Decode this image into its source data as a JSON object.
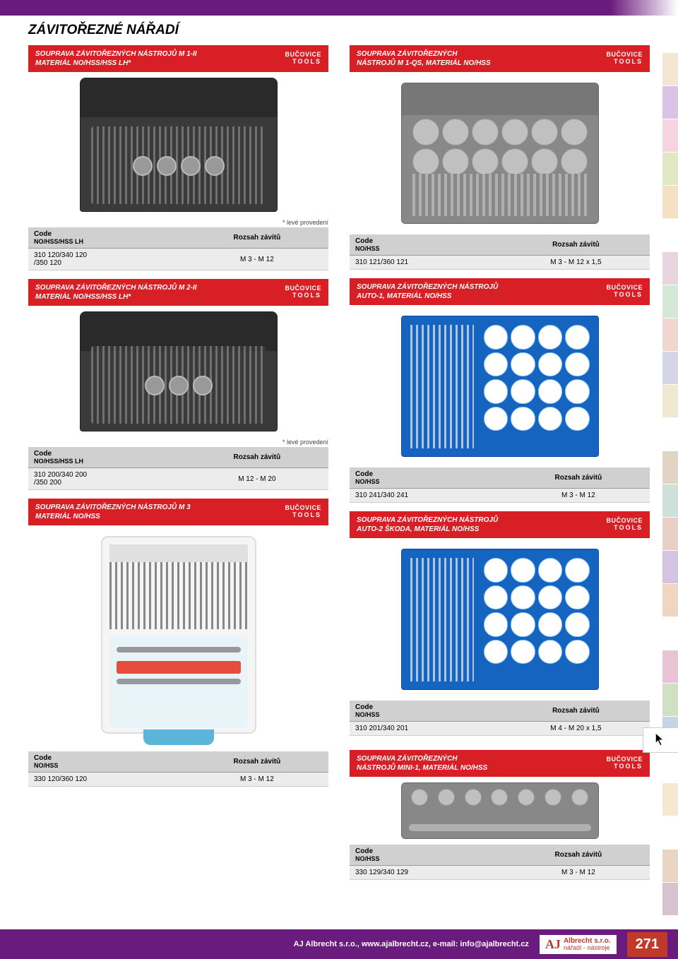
{
  "page_title": "ZÁVITOŘEZNÉ NÁŘADÍ",
  "brand": {
    "line1": "BUČOVICE",
    "line2": "TOOLS"
  },
  "labels": {
    "code": "Code",
    "range": "Rozsah závitů",
    "left_version": "* levé provedení"
  },
  "left": {
    "h1": {
      "line1": "SOUPRAVA ZÁVITOŘEZNÝCH NÁSTROJŮ M 1-II",
      "line2": "MATERIÁL NO/HSS/HSS LH*"
    },
    "t1": {
      "sub": "NO/HSS/HSS LH",
      "code": "310 120/340 120\n/350 120",
      "range": "M 3 - M 12"
    },
    "h2": {
      "line1": "SOUPRAVA ZÁVITOŘEZNÝCH NÁSTROJŮ M 2-II",
      "line2": "MATERIÁL NO/HSS/HSS LH*"
    },
    "t2": {
      "sub": "NO/HSS/HSS LH",
      "code": "310 200/340 200\n/350 200",
      "range": "M 12 - M 20"
    },
    "h3": {
      "line1": "SOUPRAVA ZÁVITOŘEZNÝCH NÁSTROJŮ M 3",
      "line2": "MATERIÁL NO/HSS"
    },
    "t3": {
      "sub": "NO/HSS",
      "code": "330 120/360 120",
      "range": "M 3 - M 12"
    }
  },
  "right": {
    "h1": {
      "line1": "SOUPRAVA ZÁVITOŘEZNÝCH",
      "line2": "NÁSTROJŮ M 1-QS, MATERIÁL NO/HSS"
    },
    "t1": {
      "sub": "NO/HSS",
      "code": "310 121/360 121",
      "range": "M 3 - M 12 x 1,5"
    },
    "h2": {
      "line1": "SOUPRAVA ZÁVITOŘEZNÝCH NÁSTROJŮ",
      "line2": "AUTO-1, MATERIÁL NO/HSS"
    },
    "t2": {
      "sub": "NO/HSS",
      "code": "310 241/340 241",
      "range": "M 3 - M 12"
    },
    "h3": {
      "line1": "SOUPRAVA ZÁVITOŘEZNÝCH NÁSTROJŮ",
      "line2": "AUTO-2 ŠKODA, MATERIÁL NO/HSS"
    },
    "t3": {
      "sub": "NO/HSS",
      "code": "310 201/340 201",
      "range": "M 4 - M 20 x 1,5"
    },
    "h4": {
      "line1": "SOUPRAVA ZÁVITOŘEZNÝCH",
      "line2": "NÁSTROJŮ MINI-1, MATERIÁL NO/HSS"
    },
    "t4": {
      "sub": "NO/HSS",
      "code": "330 129/340 129",
      "range": "M 3 - M 12"
    }
  },
  "footer": {
    "text": "AJ Albrecht s.r.o., www.ajalbrecht.cz, e-mail: info@ajalbrecht.cz",
    "company1": "Albrecht s.r.o.",
    "company2": "nářadí - nástroje",
    "page": "271"
  },
  "swatch_colors": [
    "#ffffff",
    "#f2e6d5",
    "#d9c4e8",
    "#f5d5e0",
    "#e0e8c4",
    "#f5e0c4",
    "#ffffff",
    "#e8d5e0",
    "#d5e8d5",
    "#f0d5d0",
    "#d5d5e8",
    "#f0e8d0",
    "#ffffff",
    "#e0d5c4",
    "#d0e0d8",
    "#e8d0c4",
    "#d5c4e0",
    "#f0d5c0",
    "#ffffff",
    "#e8c4d5",
    "#d0e0c4",
    "#c4d5e8",
    "#ffffff",
    "#f5e8d0",
    "#ffffff",
    "#e8d5c4",
    "#d5c4d0",
    "#ffffff"
  ]
}
